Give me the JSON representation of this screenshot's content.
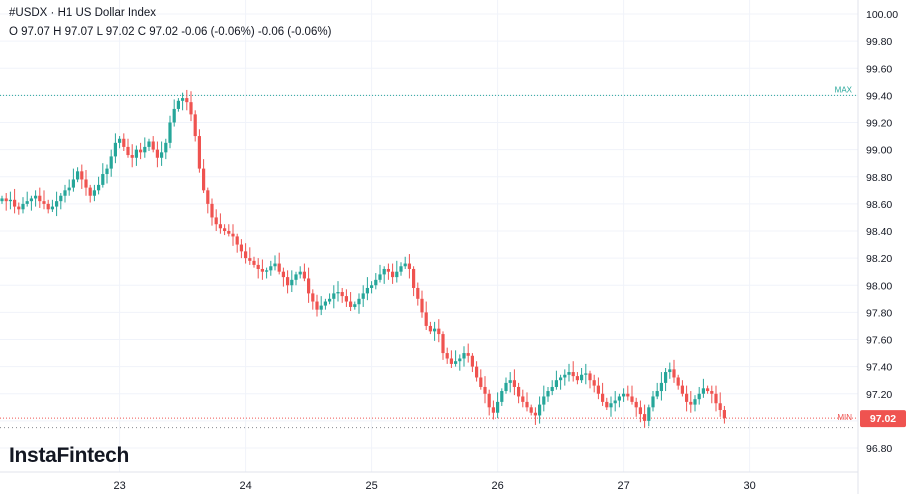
{
  "legend": {
    "title": "#USDX · H1 US Dollar Index",
    "ohlc": "O 97.07 H 97.07 L 97.02 C 97.02 -0.06 (-0.06%) -0.06 (-0.06%)"
  },
  "branding": {
    "logo_text": "InstaFintech"
  },
  "colors": {
    "up": "#26a69a",
    "down": "#ef5350",
    "max_line": "#26a69a",
    "min_line": "#ef5350",
    "grid": "#f0f3fa"
  },
  "chart_data": {
    "type": "candlestick",
    "title": "",
    "xlabel": "",
    "ylabel": "",
    "ylim": [
      96.7,
      100.05
    ],
    "y_ticks": [
      "100.00",
      "99.80",
      "99.60",
      "99.40",
      "99.20",
      "99.00",
      "98.80",
      "98.60",
      "98.40",
      "98.20",
      "98.00",
      "97.80",
      "97.60",
      "97.40",
      "97.20",
      "97.00",
      "96.80"
    ],
    "x_ticks": [
      {
        "label": "23",
        "bar_index": 28
      },
      {
        "label": "24",
        "bar_index": 58
      },
      {
        "label": "25",
        "bar_index": 88
      },
      {
        "label": "26",
        "bar_index": 118
      },
      {
        "label": "27",
        "bar_index": 148
      },
      {
        "label": "30",
        "bar_index": 178
      }
    ],
    "grid": true,
    "max_level": {
      "label": "MAX",
      "value": 99.4
    },
    "min_level": {
      "label": "MIN",
      "value": 96.95
    },
    "last_price": {
      "label": "97.02",
      "value": 97.02
    },
    "closes": [
      98.64,
      98.62,
      98.63,
      98.58,
      98.56,
      98.6,
      98.62,
      98.64,
      98.66,
      98.62,
      98.6,
      98.56,
      98.58,
      98.62,
      98.66,
      98.7,
      98.72,
      98.78,
      98.84,
      98.78,
      98.72,
      98.66,
      98.7,
      98.74,
      98.82,
      98.86,
      98.95,
      99.05,
      99.08,
      99.02,
      98.96,
      98.94,
      99.0,
      98.98,
      99.02,
      99.06,
      99.0,
      98.94,
      98.98,
      99.05,
      99.2,
      99.3,
      99.36,
      99.38,
      99.35,
      99.26,
      99.1,
      98.86,
      98.7,
      98.6,
      98.5,
      98.45,
      98.42,
      98.4,
      98.38,
      98.36,
      98.3,
      98.25,
      98.2,
      98.18,
      98.15,
      98.12,
      98.1,
      98.11,
      98.14,
      98.16,
      98.1,
      98.06,
      98.0,
      98.04,
      98.08,
      98.1,
      98.05,
      97.94,
      97.88,
      97.82,
      97.85,
      97.88,
      97.9,
      97.94,
      97.95,
      97.92,
      97.88,
      97.84,
      97.86,
      97.9,
      97.94,
      97.98,
      98.0,
      98.04,
      98.08,
      98.12,
      98.1,
      98.06,
      98.1,
      98.14,
      98.16,
      98.12,
      97.98,
      97.9,
      97.8,
      97.7,
      97.66,
      97.68,
      97.64,
      97.5,
      97.46,
      97.42,
      97.44,
      97.46,
      97.5,
      97.48,
      97.4,
      97.32,
      97.25,
      97.2,
      97.1,
      97.06,
      97.14,
      97.22,
      97.28,
      97.3,
      97.25,
      97.18,
      97.14,
      97.1,
      97.06,
      97.04,
      97.12,
      97.18,
      97.22,
      97.25,
      97.3,
      97.32,
      97.34,
      97.36,
      97.33,
      97.3,
      97.34,
      97.35,
      97.3,
      97.26,
      97.2,
      97.14,
      97.1,
      97.13,
      97.15,
      97.18,
      97.2,
      97.18,
      97.14,
      97.1,
      97.05,
      97.0,
      97.1,
      97.18,
      97.22,
      97.28,
      97.36,
      97.38,
      97.32,
      97.26,
      97.2,
      97.14,
      97.12,
      97.16,
      97.2,
      97.24,
      97.22,
      97.2,
      97.13,
      97.08,
      97.02
    ],
    "open_first": 98.62
  }
}
